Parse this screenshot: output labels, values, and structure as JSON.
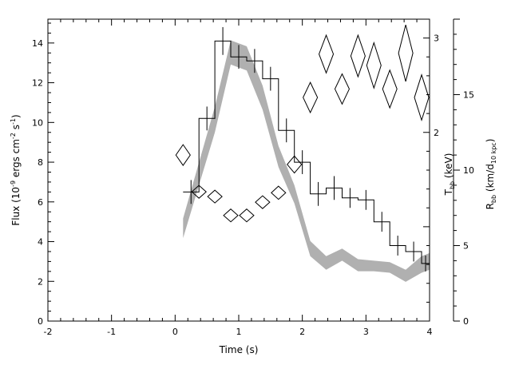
{
  "chart_data": {
    "type": "line",
    "xlabel": "Time (s)",
    "ylabel_left": "Flux (10",
    "ylabel_left_exp1": "-9",
    "ylabel_left_mid": " ergs cm",
    "ylabel_left_exp2": "-2",
    "ylabel_left_mid2": " s",
    "ylabel_left_exp3": "-1",
    "ylabel_left_end": ")",
    "ylabel_t_main": "T",
    "ylabel_t_sub": "bb",
    "ylabel_t_unit": " (keV)",
    "ylabel_r_main": "R",
    "ylabel_r_sub": "bb",
    "ylabel_r_unit": " (km/d",
    "ylabel_r_sub2": "10 kpc",
    "ylabel_r_end": ")",
    "xlim": [
      -2,
      4
    ],
    "ylim_flux": [
      0,
      15.2
    ],
    "x_ticks": [
      "-2",
      "-1",
      "0",
      "1",
      "2",
      "3",
      "4"
    ],
    "flux_ticks": [
      "0",
      "2",
      "4",
      "6",
      "8",
      "10",
      "12",
      "14"
    ],
    "t_ticks": [
      "2",
      "3"
    ],
    "r_ticks": [
      "0",
      "5",
      "10",
      "15"
    ],
    "flux_series": {
      "name": "",
      "bins": [
        {
          "x0": 0.125,
          "x1": 0.375,
          "y": 6.5,
          "err": 0.6
        },
        {
          "x0": 0.375,
          "x1": 0.625,
          "y": 10.2,
          "err": 0.6
        },
        {
          "x0": 0.625,
          "x1": 0.875,
          "y": 14.1,
          "err": 0.7
        },
        {
          "x0": 0.875,
          "x1": 1.125,
          "y": 13.3,
          "err": 0.6
        },
        {
          "x0": 1.125,
          "x1": 1.375,
          "y": 13.1,
          "err": 0.6
        },
        {
          "x0": 1.375,
          "x1": 1.625,
          "y": 12.2,
          "err": 0.6
        },
        {
          "x0": 1.625,
          "x1": 1.875,
          "y": 9.6,
          "err": 0.6
        },
        {
          "x0": 1.875,
          "x1": 2.125,
          "y": 8.0,
          "err": 0.6
        },
        {
          "x0": 2.125,
          "x1": 2.375,
          "y": 6.4,
          "err": 0.6
        },
        {
          "x0": 2.375,
          "x1": 2.625,
          "y": 6.7,
          "err": 0.6
        },
        {
          "x0": 2.625,
          "x1": 2.875,
          "y": 6.2,
          "err": 0.5
        },
        {
          "x0": 2.875,
          "x1": 3.125,
          "y": 6.1,
          "err": 0.5
        },
        {
          "x0": 3.125,
          "x1": 3.375,
          "y": 5.0,
          "err": 0.5
        },
        {
          "x0": 3.375,
          "x1": 3.625,
          "y": 3.8,
          "err": 0.5
        },
        {
          "x0": 3.625,
          "x1": 3.875,
          "y": 3.5,
          "err": 0.5
        },
        {
          "x0": 3.875,
          "x1": 4.0,
          "y": 2.9,
          "err": 0.4
        }
      ]
    },
    "temperature_series": {
      "name": "",
      "points": [
        {
          "x": 0.125,
          "y": 1.76,
          "dy": 0.11
        },
        {
          "x": 0.375,
          "y": 1.37,
          "dy": 0.06
        },
        {
          "x": 0.625,
          "y": 1.32,
          "dy": 0.06
        },
        {
          "x": 0.875,
          "y": 1.12,
          "dy": 0.05
        },
        {
          "x": 1.125,
          "y": 1.12,
          "dy": 0.05
        },
        {
          "x": 1.375,
          "y": 1.26,
          "dy": 0.06
        },
        {
          "x": 1.625,
          "y": 1.36,
          "dy": 0.07
        },
        {
          "x": 1.875,
          "y": 1.66,
          "dy": 0.09
        },
        {
          "x": 2.125,
          "y": 2.37,
          "dy": 0.16
        },
        {
          "x": 2.375,
          "y": 2.83,
          "dy": 0.2
        },
        {
          "x": 2.625,
          "y": 2.46,
          "dy": 0.16
        },
        {
          "x": 2.875,
          "y": 2.81,
          "dy": 0.22
        },
        {
          "x": 3.125,
          "y": 2.71,
          "dy": 0.24
        },
        {
          "x": 3.375,
          "y": 2.46,
          "dy": 0.2
        },
        {
          "x": 3.625,
          "y": 2.84,
          "dy": 0.3
        },
        {
          "x": 3.875,
          "y": 2.37,
          "dy": 0.24
        }
      ]
    },
    "radius_band": {
      "name": "",
      "x": [
        0.125,
        0.375,
        0.625,
        0.875,
        1.125,
        1.375,
        1.625,
        1.875,
        2.125,
        2.375,
        2.625,
        2.875,
        3.125,
        3.375,
        3.625,
        3.875,
        4.0
      ],
      "lower": [
        5.5,
        9.0,
        12.5,
        17.0,
        16.6,
        14.0,
        10.2,
        7.8,
        4.3,
        3.4,
        4.0,
        3.3,
        3.3,
        3.2,
        2.6,
        3.2,
        3.4
      ],
      "upper": [
        6.8,
        10.5,
        14.2,
        18.6,
        18.2,
        15.6,
        11.6,
        9.0,
        5.3,
        4.3,
        4.8,
        4.1,
        4.0,
        3.9,
        3.4,
        4.3,
        4.5
      ]
    },
    "ylim_temperature": [
      0,
      3.2
    ],
    "ylim_radius": [
      0,
      20
    ]
  }
}
